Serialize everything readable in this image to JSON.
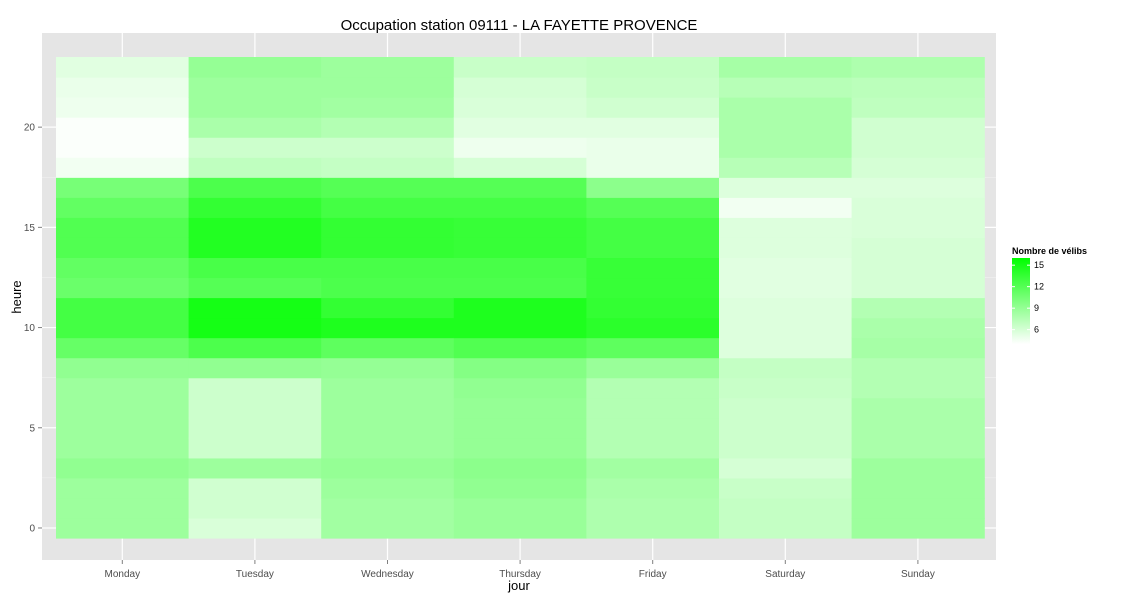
{
  "chart_data": {
    "type": "heatmap",
    "title": "Occupation station 09111 - LA FAYETTE PROVENCE",
    "xlabel": "jour",
    "ylabel": "heure",
    "x_categories": [
      "Monday",
      "Tuesday",
      "Wednesday",
      "Thursday",
      "Friday",
      "Saturday",
      "Sunday"
    ],
    "y_values": [
      0,
      1,
      2,
      3,
      4,
      5,
      6,
      7,
      8,
      9,
      10,
      11,
      12,
      13,
      14,
      15,
      16,
      17,
      18,
      19,
      20,
      21,
      22,
      23
    ],
    "y_ticks": [
      0,
      5,
      10,
      15,
      20
    ],
    "ylim": [
      -0.5,
      23.5
    ],
    "grid": true,
    "legend": {
      "title": "Nombre de vélibs",
      "position": "right",
      "breaks": [
        15,
        12,
        9,
        6
      ],
      "range": [
        4,
        16
      ],
      "low_color": "#ffffff",
      "high_color": "#00ff00"
    },
    "series": [
      {
        "values": [
          8.6,
          8.6,
          8.6,
          9.2,
          8.6,
          8.6,
          8.6,
          8.6,
          9.2,
          11.2,
          12.8,
          12.8,
          11.0,
          11.4,
          12.2,
          12.2,
          11.4,
          10.4,
          4.6,
          4.2,
          4.2,
          4.8,
          5.0,
          5.4
        ]
      },
      {
        "values": [
          5.8,
          6.2,
          6.2,
          8.6,
          6.4,
          6.4,
          6.4,
          6.4,
          9.2,
          12.4,
          15.0,
          15.0,
          12.0,
          12.6,
          14.4,
          14.4,
          13.6,
          12.4,
          7.0,
          6.4,
          8.0,
          8.6,
          8.6,
          9.0
        ]
      },
      {
        "values": [
          8.4,
          8.4,
          8.6,
          9.0,
          8.6,
          8.6,
          8.6,
          8.6,
          9.0,
          11.6,
          14.6,
          13.6,
          12.4,
          12.6,
          13.6,
          13.6,
          12.8,
          12.0,
          6.8,
          6.4,
          7.6,
          8.4,
          8.6,
          8.6
        ]
      },
      {
        "values": [
          8.8,
          8.8,
          9.2,
          9.4,
          9.0,
          9.0,
          9.0,
          9.2,
          9.8,
          12.2,
          14.6,
          14.6,
          12.4,
          12.6,
          13.4,
          13.4,
          12.8,
          12.0,
          6.0,
          4.8,
          5.4,
          5.8,
          6.0,
          6.6
        ]
      },
      {
        "values": [
          7.8,
          7.8,
          8.0,
          8.4,
          7.6,
          7.6,
          7.6,
          7.6,
          8.8,
          11.6,
          14.0,
          13.6,
          13.4,
          13.4,
          12.8,
          12.8,
          12.0,
          9.4,
          5.0,
          5.0,
          5.4,
          6.2,
          6.6,
          6.8
        ]
      },
      {
        "values": [
          6.8,
          6.8,
          6.6,
          6.0,
          6.4,
          6.4,
          6.4,
          6.6,
          6.8,
          5.6,
          5.6,
          5.6,
          5.4,
          5.4,
          5.6,
          5.6,
          4.6,
          5.6,
          7.4,
          8.0,
          8.0,
          8.0,
          7.4,
          8.2
        ]
      },
      {
        "values": [
          8.6,
          8.6,
          8.6,
          8.6,
          8.0,
          8.0,
          8.0,
          7.6,
          7.6,
          8.2,
          8.0,
          7.6,
          6.0,
          6.0,
          6.0,
          5.8,
          5.8,
          5.6,
          6.0,
          6.2,
          6.2,
          7.0,
          7.2,
          7.8
        ]
      }
    ]
  }
}
